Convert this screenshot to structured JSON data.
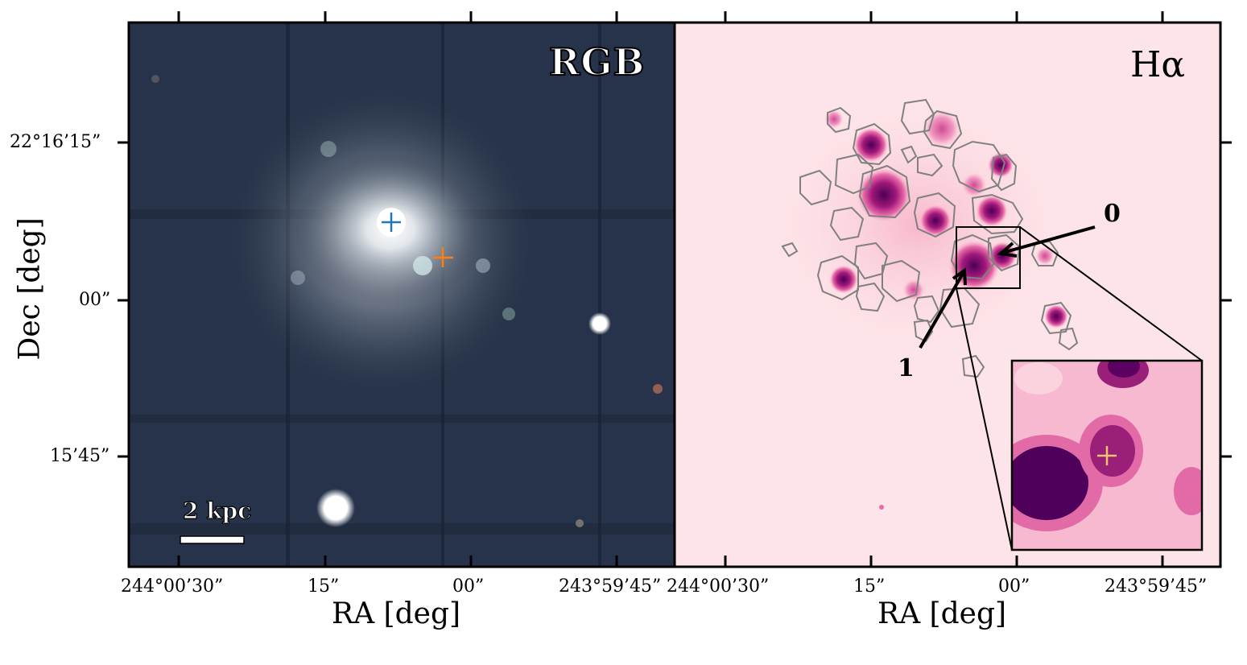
{
  "panels": {
    "left": {
      "label": "RGB",
      "scale_bar": "2 kpc"
    },
    "right": {
      "label": "Hα",
      "callouts": [
        "0",
        "1"
      ]
    }
  },
  "axes": {
    "x_title": "RA [deg]",
    "y_title": "Dec [deg]",
    "x_ticks": [
      "244°00’30”",
      "15”",
      "00”",
      "243°59’45”"
    ],
    "y_ticks": [
      "22°16’15”",
      "00”",
      "15’45”"
    ]
  },
  "colors": {
    "galaxy_center_marker": "#1f77b4",
    "offset_marker": "#ff7f0e",
    "contour": "#808080",
    "halpha_dark": "#4a0056",
    "halpha_mid": "#cc2f8f",
    "halpha_bg": "#fde4e8"
  }
}
